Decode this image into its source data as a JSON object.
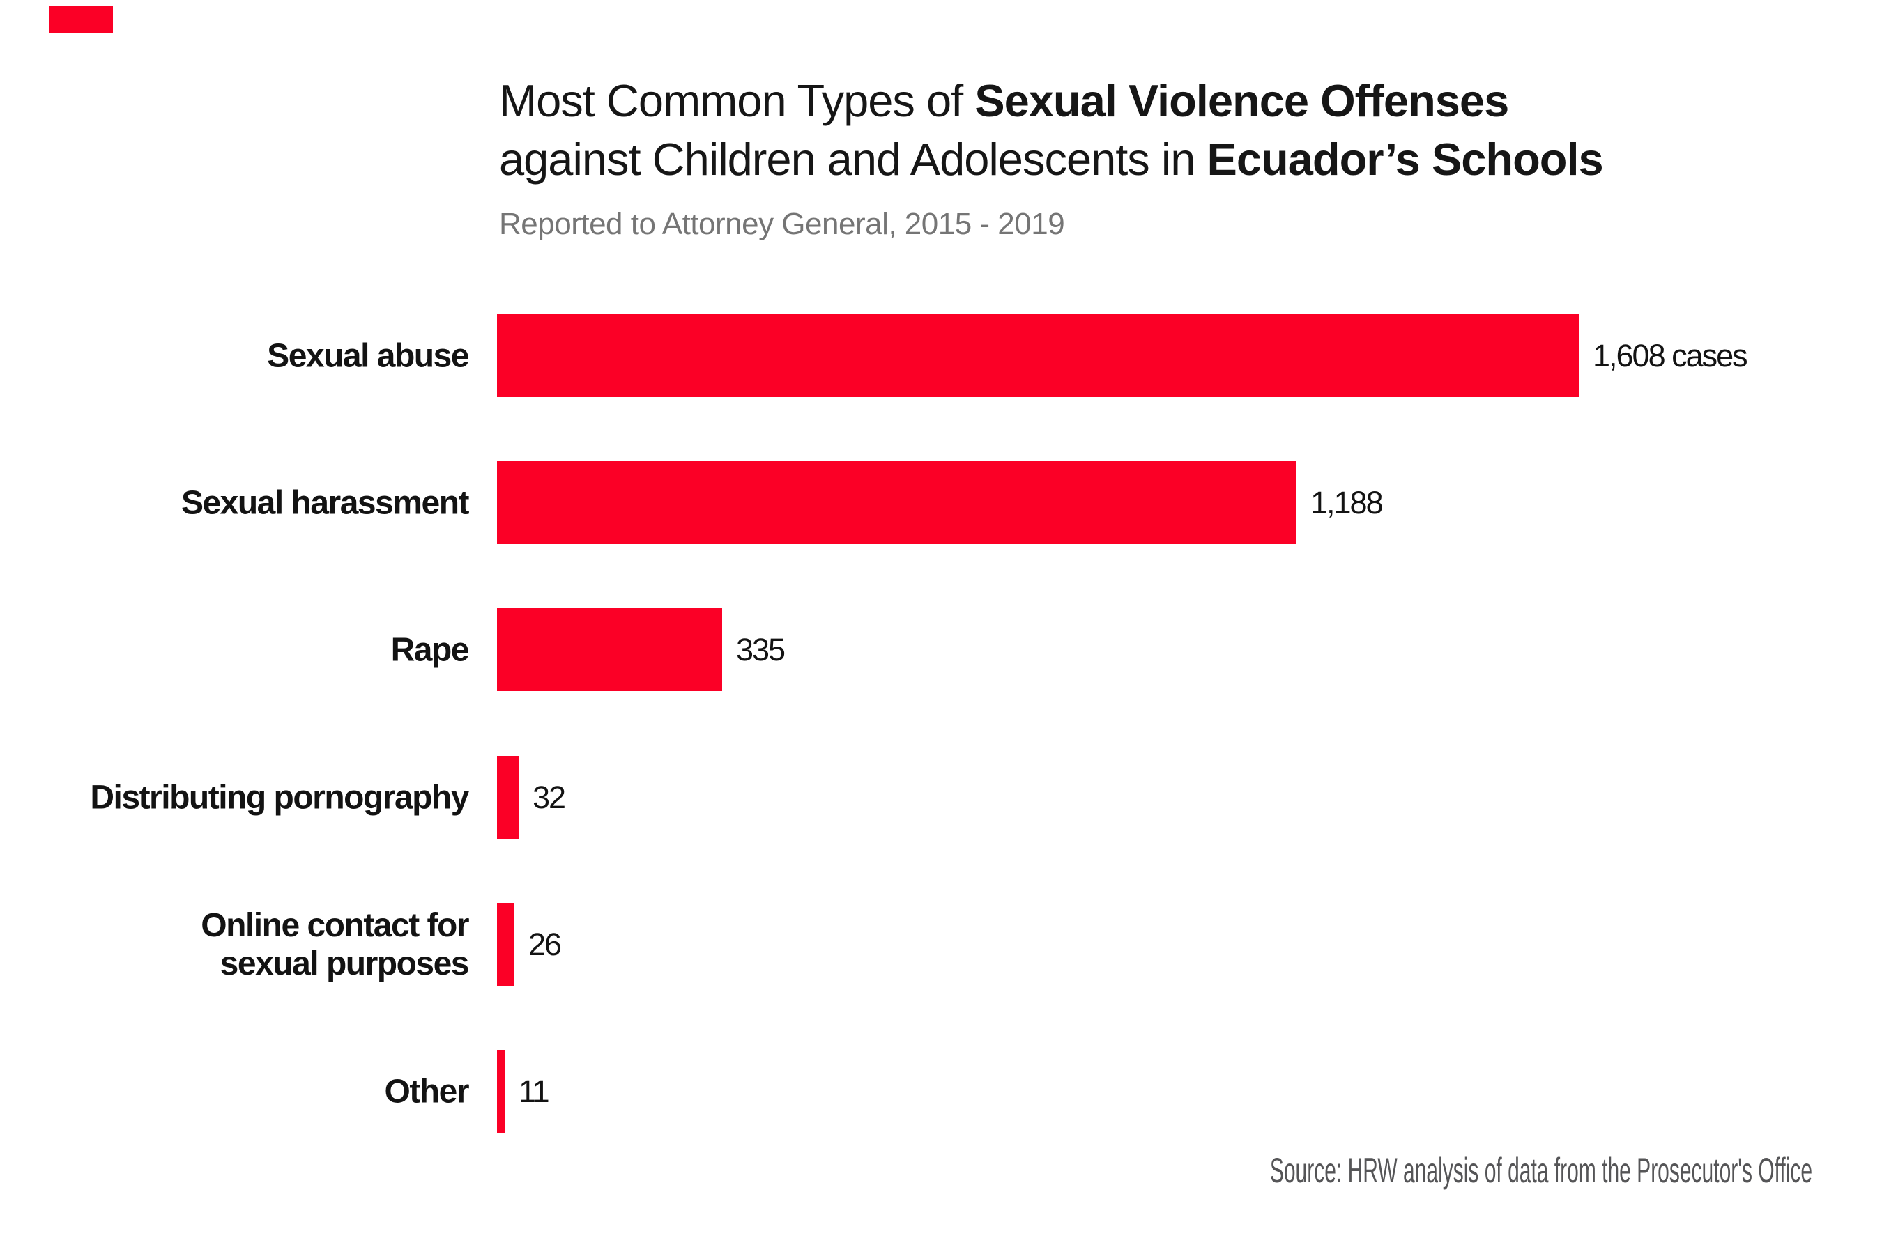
{
  "page": {
    "background": "#ffffff"
  },
  "brand": {
    "logo_mark_color": "#fb0026"
  },
  "header": {
    "title_lines": [
      {
        "segments": [
          {
            "text": "Most Common Types of ",
            "bold": false
          },
          {
            "text": "Sexual Violence Offenses",
            "bold": true
          }
        ]
      },
      {
        "segments": [
          {
            "text": "against Children and Adolescents in ",
            "bold": false
          },
          {
            "text": "Ecuador’s Schools",
            "bold": true
          }
        ]
      }
    ],
    "subtitle": "Reported to Attorney General, 2015 - 2019"
  },
  "chart_data": {
    "type": "bar",
    "orientation": "horizontal",
    "title": "Most Common Types of Sexual Violence Offenses against Children and Adolescents in Ecuador’s Schools",
    "subtitle": "Reported to Attorney General, 2015 - 2019",
    "categories": [
      "Sexual abuse",
      "Sexual harassment",
      "Rape",
      "Distributing pornography",
      "Online contact for sexual purposes",
      "Other"
    ],
    "values": [
      1608,
      1188,
      335,
      32,
      26,
      11
    ],
    "value_labels": [
      "1,608 cases",
      "1,188",
      "335",
      "32",
      "26",
      "11"
    ],
    "unit": "cases",
    "bar_color": "#fb0026",
    "xlim": [
      0,
      1608
    ],
    "grid": false,
    "legend": false,
    "rows": [
      {
        "label_lines": [
          "Sexual abuse"
        ],
        "value": 1608,
        "value_label": "1,608 cases"
      },
      {
        "label_lines": [
          "Sexual harassment"
        ],
        "value": 1188,
        "value_label": "1,188"
      },
      {
        "label_lines": [
          "Rape"
        ],
        "value": 335,
        "value_label": "335"
      },
      {
        "label_lines": [
          "Distributing pornography"
        ],
        "value": 32,
        "value_label": "32"
      },
      {
        "label_lines": [
          "Online contact for",
          "sexual purposes"
        ],
        "value": 26,
        "value_label": "26"
      },
      {
        "label_lines": [
          "Other"
        ],
        "value": 11,
        "value_label": "11"
      }
    ]
  },
  "footer": {
    "source": "Source: HRW analysis of data from the Prosecutor's Office"
  }
}
